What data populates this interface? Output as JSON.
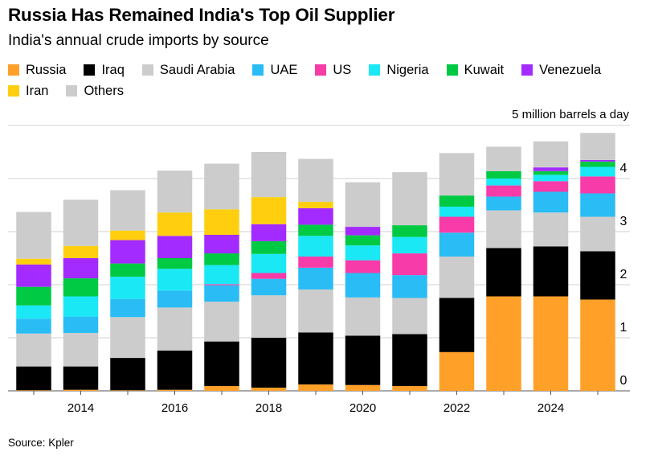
{
  "title": "Russia Has Remained India's Top Oil Supplier",
  "subtitle": "India's annual crude imports by source",
  "source": "Source: Kpler",
  "chart_data": {
    "type": "stacked-bar",
    "title": "Russia Has Remained India's Top Oil Supplier",
    "subtitle": "India's annual crude imports by source",
    "ylabel": "5 million barrels a day",
    "ylim": [
      0,
      5
    ],
    "yticks": [
      "0",
      "1",
      "2",
      "3",
      "4"
    ],
    "grid": true,
    "legend": "top",
    "y_axis_side": "right",
    "categories": [
      2013,
      2014,
      2015,
      2016,
      2017,
      2018,
      2019,
      2020,
      2021,
      2022,
      2023,
      2024,
      2025
    ],
    "xtick_labels": [
      "2014",
      "2016",
      "2018",
      "2020",
      "2022",
      "2024"
    ],
    "series": [
      {
        "name": "Russia",
        "color": "#ffa028",
        "values": [
          0.01,
          0.02,
          0.01,
          0.02,
          0.09,
          0.06,
          0.12,
          0.11,
          0.09,
          0.73,
          1.78,
          1.78,
          1.72
        ]
      },
      {
        "name": "Iraq",
        "color": "#000000",
        "values": [
          0.45,
          0.44,
          0.61,
          0.74,
          0.84,
          0.94,
          0.98,
          0.93,
          0.98,
          1.02,
          0.91,
          0.94,
          0.91
        ]
      },
      {
        "name": "Saudi Arabia",
        "color": "#cccccc",
        "values": [
          0.62,
          0.63,
          0.77,
          0.81,
          0.75,
          0.8,
          0.81,
          0.72,
          0.68,
          0.78,
          0.71,
          0.64,
          0.65
        ]
      },
      {
        "name": "UAE",
        "color": "#29bcf5",
        "values": [
          0.28,
          0.31,
          0.34,
          0.32,
          0.31,
          0.31,
          0.41,
          0.46,
          0.43,
          0.45,
          0.26,
          0.39,
          0.44
        ]
      },
      {
        "name": "US",
        "color": "#f73ba9",
        "values": [
          0,
          0,
          0,
          0,
          0.02,
          0.11,
          0.21,
          0.24,
          0.41,
          0.3,
          0.21,
          0.2,
          0.32
        ]
      },
      {
        "name": "Nigeria",
        "color": "#1ae8f5",
        "values": [
          0.25,
          0.38,
          0.42,
          0.41,
          0.36,
          0.36,
          0.39,
          0.28,
          0.31,
          0.19,
          0.13,
          0.12,
          0.18
        ]
      },
      {
        "name": "Kuwait",
        "color": "#00c943",
        "values": [
          0.35,
          0.34,
          0.25,
          0.2,
          0.22,
          0.24,
          0.21,
          0.19,
          0.22,
          0.21,
          0.14,
          0.07,
          0.1
        ]
      },
      {
        "name": "Venezuela",
        "color": "#a32bff",
        "values": [
          0.42,
          0.38,
          0.44,
          0.42,
          0.35,
          0.32,
          0.31,
          0.16,
          0,
          0,
          0,
          0.07,
          0.03
        ]
      },
      {
        "name": "Iran",
        "color": "#ffcf0f",
        "values": [
          0.11,
          0.23,
          0.18,
          0.44,
          0.48,
          0.51,
          0.12,
          0,
          0,
          0,
          0,
          0,
          0
        ]
      },
      {
        "name": "Others",
        "color": "#cccccc",
        "values": [
          0.88,
          0.87,
          0.76,
          0.79,
          0.86,
          0.85,
          0.81,
          0.84,
          1.0,
          0.8,
          0.46,
          0.49,
          0.51
        ]
      }
    ]
  }
}
